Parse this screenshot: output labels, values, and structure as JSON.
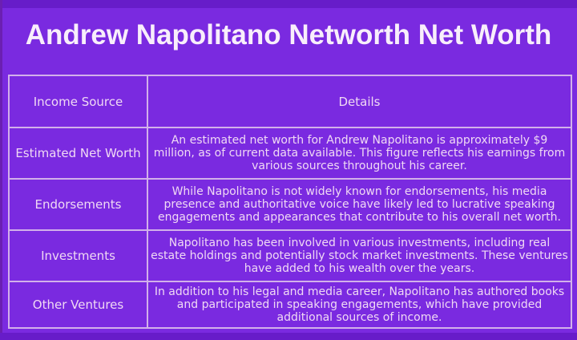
{
  "page": {
    "title": "Andrew Napolitano Networth Net Worth"
  },
  "table": {
    "headers": [
      "Income Source",
      "Details"
    ],
    "rows": [
      {
        "source": "Estimated Net Worth",
        "details": "An estimated net worth for Andrew Napolitano is approximately $9 million, as of current data available. This figure reflects his earnings from various sources throughout his career."
      },
      {
        "source": "Endorsements",
        "details": "While Napolitano is not widely known for endorsements, his media presence and authoritative voice have likely led to lucrative speaking engagements and appearances that contribute to his overall net worth."
      },
      {
        "source": "Investments",
        "details": "Napolitano has been involved in various investments, including real estate holdings and potentially stock market investments. These ventures have added to his wealth over the years."
      },
      {
        "source": "Other Ventures",
        "details": "In addition to his legal and media career, Napolitano has authored books and participated in speaking engagements, which have provided additional sources of income."
      }
    ]
  },
  "colors": {
    "background": "#7a2ae0",
    "strip": "#671cc9",
    "table_border": "#d2b0ea",
    "text": "#f0d9f4",
    "title_text": "#f8eefb"
  }
}
